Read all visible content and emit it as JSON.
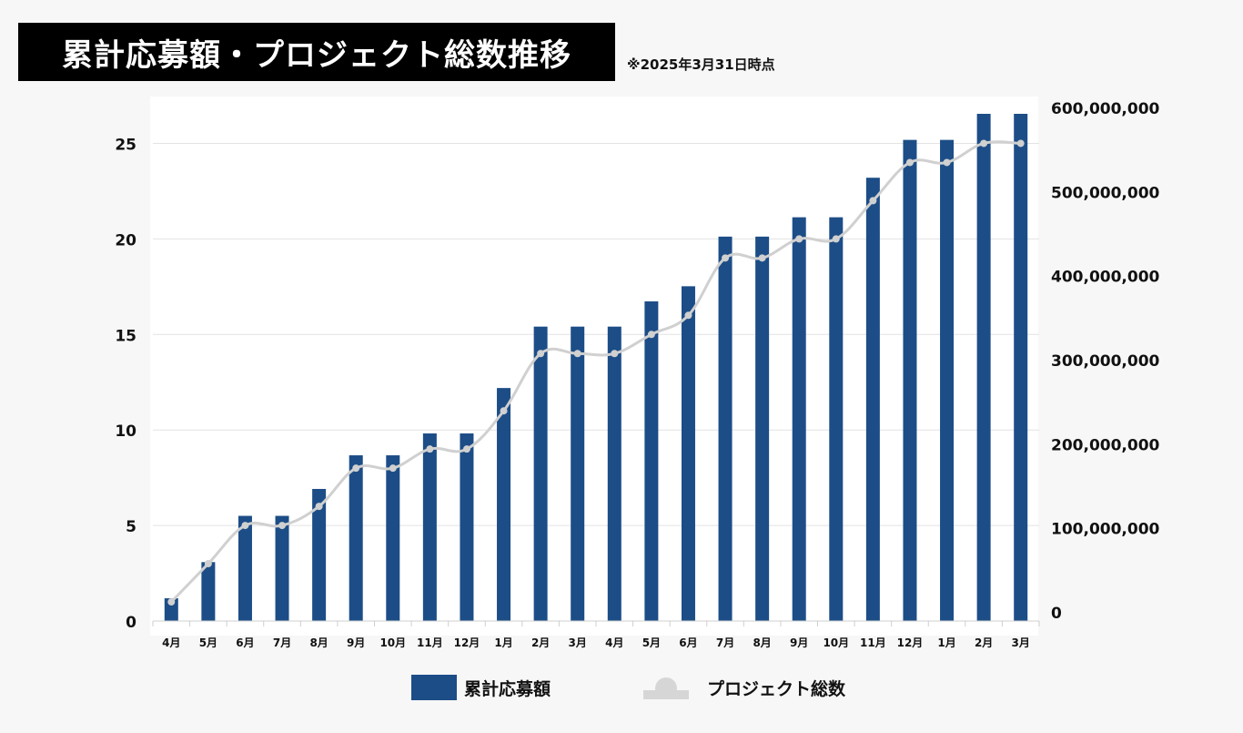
{
  "header": {
    "title": "累計応募額・プロジェクト総数推移",
    "note": "※2025年3月31日時点"
  },
  "legend": {
    "bar_label": "累計応募額",
    "line_label": "プロジェクト総数"
  },
  "colors": {
    "bar": "#1c4d87",
    "line": "#d0d0d0",
    "grid": "#e3e3e3",
    "text": "#111111"
  },
  "chart_data": {
    "type": "bar",
    "title": "累計応募額・プロジェクト総数推移",
    "categories": [
      "4月",
      "5月",
      "6月",
      "7月",
      "8月",
      "9月",
      "10月",
      "11月",
      "12月",
      "1月",
      "2月",
      "3月",
      "4月",
      "5月",
      "6月",
      "7月",
      "8月",
      "9月",
      "10月",
      "11月",
      "12月",
      "1月",
      "2月",
      "3月"
    ],
    "series": [
      {
        "name": "累計応募額",
        "type": "bar",
        "axis": "right",
        "values": [
          27000000,
          70000000,
          125000000,
          125000000,
          157000000,
          197000000,
          197000000,
          223000000,
          223000000,
          277000000,
          350000000,
          350000000,
          350000000,
          380000000,
          398000000,
          457000000,
          457000000,
          480000000,
          480000000,
          527000000,
          572000000,
          572000000,
          603000000,
          603000000
        ]
      },
      {
        "name": "プロジェクト総数",
        "type": "line",
        "axis": "left",
        "values": [
          1,
          3,
          5,
          5,
          6,
          8,
          8,
          9,
          9,
          11,
          14,
          14,
          14,
          15,
          16,
          19,
          19,
          20,
          20,
          22,
          24,
          24,
          25,
          25
        ]
      }
    ],
    "y_left": {
      "ticks": [
        0,
        5,
        10,
        15,
        20,
        25
      ],
      "tick_labels": [
        "0",
        "5",
        "10",
        "15",
        "20",
        "25"
      ],
      "range": [
        0,
        26.5
      ]
    },
    "y_right": {
      "ticks": [
        0,
        100000000,
        200000000,
        300000000,
        400000000,
        500000000,
        600000000
      ],
      "tick_labels": [
        "0",
        "100,000,000",
        "200,000,000",
        "300,000,000",
        "400,000,000",
        "500,000,000",
        "600,000,000"
      ],
      "range": [
        0,
        603000000
      ]
    },
    "grid": true,
    "legend_position": "bottom"
  }
}
